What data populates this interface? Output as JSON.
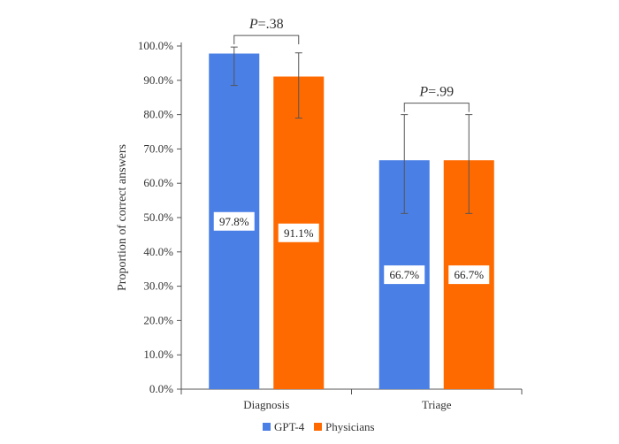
{
  "chart_data": {
    "type": "bar",
    "title": "",
    "xlabel": "",
    "ylabel": "Proportion of correct answers",
    "categories": [
      "Diagnosis",
      "Triage"
    ],
    "ylim": [
      0,
      100
    ],
    "y_ticks": [
      0,
      10,
      20,
      30,
      40,
      50,
      60,
      70,
      80,
      90,
      100
    ],
    "y_tick_labels": [
      "0.0%",
      "10.0%",
      "20.0%",
      "30.0%",
      "40.0%",
      "50.0%",
      "60.0%",
      "70.0%",
      "80.0%",
      "90.0%",
      "100.0%"
    ],
    "series": [
      {
        "name": "GPT-4",
        "color": "#4a7fe6",
        "values": [
          97.8,
          66.7
        ],
        "data_labels": [
          "97.8%",
          "66.7%"
        ],
        "error_low": [
          88.5,
          51.2
        ],
        "error_high": [
          99.7,
          80.0
        ]
      },
      {
        "name": "Physicians",
        "color": "#ff6a00",
        "values": [
          91.1,
          66.7
        ],
        "data_labels": [
          "91.1%",
          "66.7%"
        ],
        "error_low": [
          79.0,
          51.2
        ],
        "error_high": [
          98.0,
          80.0
        ]
      }
    ],
    "annotations": [
      {
        "category": "Diagnosis",
        "prefix": "P",
        "value": "=.38"
      },
      {
        "category": "Triage",
        "prefix": "P",
        "value": "=.99"
      }
    ],
    "grid": false,
    "legend_position": "bottom-center"
  }
}
